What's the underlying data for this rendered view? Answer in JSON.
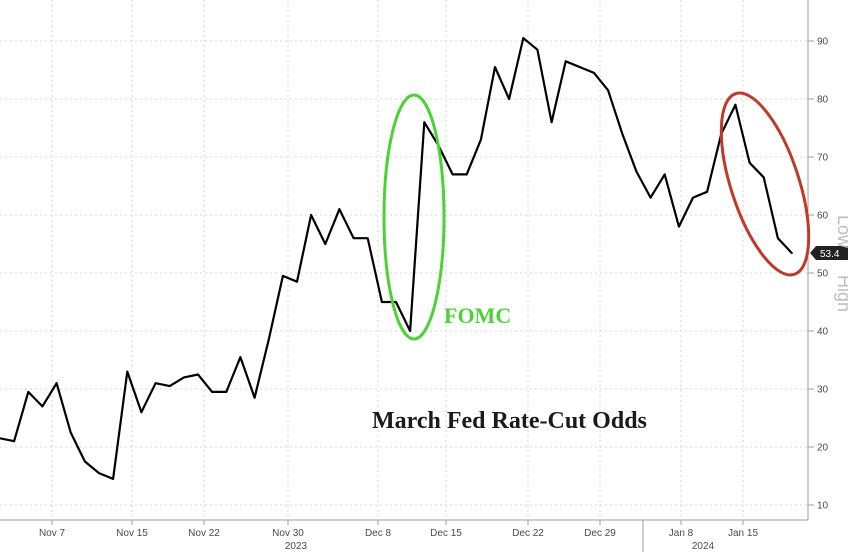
{
  "chart_data": {
    "type": "line",
    "title": "March Fed Rate-Cut Odds",
    "annotations": [
      {
        "label": "FOMC",
        "color": "#4cd137"
      },
      {
        "label": "",
        "color": "#c0392b"
      }
    ],
    "ylim": [
      8,
      100
    ],
    "yticks": [
      10,
      20,
      30,
      40,
      50,
      60,
      70,
      80,
      90
    ],
    "grid": true,
    "x_tick_labels": [
      "Nov 7",
      "Nov 15",
      "Nov 22",
      "Nov 30",
      "Dec 8",
      "Dec 15",
      "Dec 22",
      "Dec 29",
      "Jan 8",
      "Jan 15"
    ],
    "year_labels": [
      "2023",
      "2024"
    ],
    "side_labels": [
      "Low",
      "High"
    ],
    "last_value_label": "53.4",
    "series": [
      {
        "color": "#000000",
        "values": [
          21.5,
          21.0,
          29.5,
          27.0,
          31.0,
          22.5,
          17.5,
          15.5,
          14.5,
          33.0,
          26.0,
          31.0,
          30.5,
          32.0,
          32.5,
          29.5,
          29.5,
          35.5,
          28.5,
          38.5,
          49.5,
          48.5,
          60.0,
          55.0,
          61.0,
          56.0,
          56.0,
          45.0,
          45.0,
          40.0,
          76.0,
          72.0,
          67.0,
          67.0,
          73.0,
          85.5,
          80.0,
          90.5,
          88.5,
          76.0,
          86.5,
          85.5,
          84.5,
          81.5,
          74.0,
          67.5,
          63.0,
          67.0,
          58.0,
          63.0,
          64.0,
          74.0,
          79.0,
          69.0,
          66.5,
          56.0,
          53.4
        ]
      }
    ]
  },
  "colors": {
    "fomc": "#4cd137",
    "drop": "#c0392b",
    "badge": "#222222"
  }
}
